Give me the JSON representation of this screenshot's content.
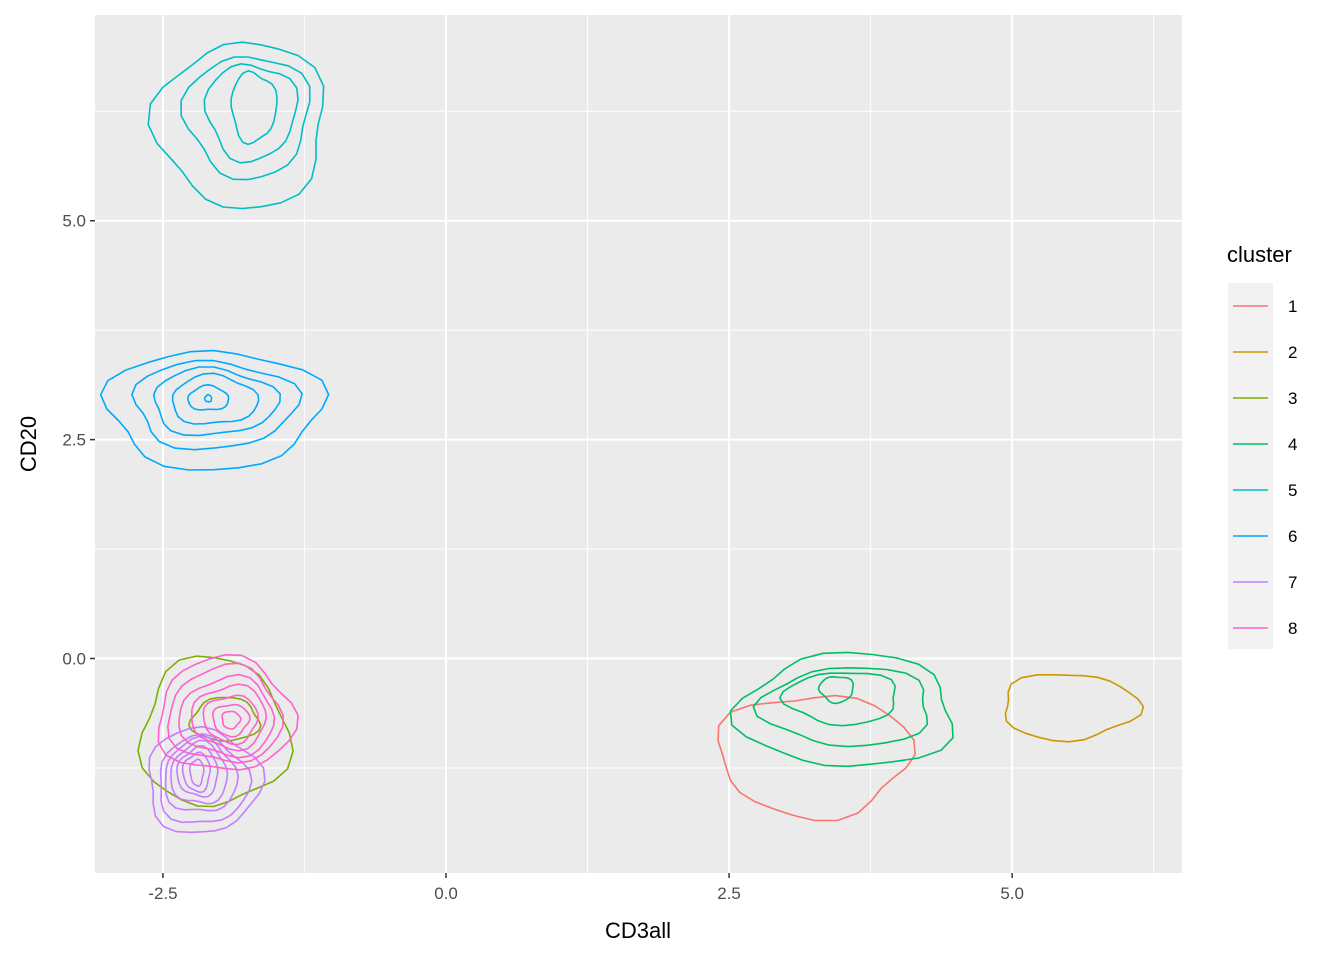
{
  "chart_data": {
    "type": "contour",
    "title": "",
    "xlabel": "CD3all",
    "ylabel": "CD20",
    "xlim": [
      -3.1,
      6.5
    ],
    "ylim": [
      -2.45,
      7.35
    ],
    "x_ticks": [
      -2.5,
      0.0,
      2.5,
      5.0
    ],
    "x_tick_labels": [
      "-2.5",
      "0.0",
      "2.5",
      "5.0"
    ],
    "y_ticks": [
      0.0,
      2.5,
      5.0
    ],
    "y_tick_labels": [
      "0.0",
      "2.5",
      "5.0"
    ],
    "grid": true,
    "legend": {
      "title": "cluster",
      "placement": "right",
      "entries": [
        "1",
        "2",
        "3",
        "4",
        "5",
        "6",
        "7",
        "8"
      ]
    },
    "colors": {
      "1": "#F8766D",
      "2": "#CD9600",
      "3": "#7CAE00",
      "4": "#00BE67",
      "5": "#00BFC4",
      "6": "#00A9FF",
      "7": "#C77CFF",
      "8": "#FF61CC"
    },
    "panel_background": "#EBEBEB",
    "series": [
      {
        "name": "1",
        "center": [
          3.3,
          -0.9
        ],
        "rings": [
          {
            "rx": 0.85,
            "ry": 0.7,
            "dx": -0.05,
            "dy": -0.2
          }
        ]
      },
      {
        "name": "2",
        "center": [
          5.5,
          -0.55
        ],
        "rings": [
          {
            "rx": 0.6,
            "ry": 0.38,
            "dx": 0.0,
            "dy": 0.0
          }
        ]
      },
      {
        "name": "3",
        "center": [
          -2.05,
          -0.85
        ],
        "rings": [
          {
            "rx": 0.65,
            "ry": 0.85,
            "dx": 0.0,
            "dy": 0.0
          },
          {
            "rx": 0.3,
            "ry": 0.25,
            "dx": 0.1,
            "dy": 0.15
          }
        ]
      },
      {
        "name": "4",
        "center": [
          3.55,
          -0.6
        ],
        "rings": [
          {
            "rx": 0.95,
            "ry": 0.65,
            "dx": 0.0,
            "dy": 0.0
          },
          {
            "rx": 0.75,
            "ry": 0.45,
            "dx": 0.0,
            "dy": 0.05
          },
          {
            "rx": 0.5,
            "ry": 0.3,
            "dx": -0.05,
            "dy": 0.15
          },
          {
            "rx": 0.15,
            "ry": 0.15,
            "dx": -0.1,
            "dy": 0.25
          }
        ]
      },
      {
        "name": "5",
        "center": [
          -1.8,
          6.1
        ],
        "rings": [
          {
            "rx": 0.75,
            "ry": 0.95,
            "dx": 0.0,
            "dy": 0.0
          },
          {
            "rx": 0.55,
            "ry": 0.7,
            "dx": 0.05,
            "dy": 0.1
          },
          {
            "rx": 0.4,
            "ry": 0.55,
            "dx": 0.08,
            "dy": 0.15
          },
          {
            "rx": 0.2,
            "ry": 0.4,
            "dx": 0.1,
            "dy": 0.2
          }
        ]
      },
      {
        "name": "6",
        "center": [
          -2.05,
          2.85
        ],
        "rings": [
          {
            "rx": 0.95,
            "ry": 0.68,
            "dx": 0.0,
            "dy": 0.0
          },
          {
            "rx": 0.72,
            "ry": 0.5,
            "dx": 0.0,
            "dy": 0.05
          },
          {
            "rx": 0.55,
            "ry": 0.38,
            "dx": 0.0,
            "dy": 0.08
          },
          {
            "rx": 0.38,
            "ry": 0.28,
            "dx": 0.0,
            "dy": 0.1
          },
          {
            "rx": 0.18,
            "ry": 0.14,
            "dx": -0.05,
            "dy": 0.12
          },
          {
            "rx": 0.03,
            "ry": 0.04,
            "dx": -0.05,
            "dy": 0.12
          }
        ]
      },
      {
        "name": "7",
        "center": [
          -2.15,
          -1.4
        ],
        "rings": [
          {
            "rx": 0.5,
            "ry": 0.6,
            "dx": 0.0,
            "dy": 0.0
          },
          {
            "rx": 0.4,
            "ry": 0.5,
            "dx": 0.0,
            "dy": 0.0
          },
          {
            "rx": 0.32,
            "ry": 0.42,
            "dx": -0.02,
            "dy": 0.05
          },
          {
            "rx": 0.25,
            "ry": 0.35,
            "dx": -0.03,
            "dy": 0.08
          },
          {
            "rx": 0.18,
            "ry": 0.28,
            "dx": -0.04,
            "dy": 0.1
          },
          {
            "rx": 0.12,
            "ry": 0.22,
            "dx": -0.05,
            "dy": 0.1
          },
          {
            "rx": 0.06,
            "ry": 0.15,
            "dx": -0.05,
            "dy": 0.1
          }
        ]
      },
      {
        "name": "8",
        "center": [
          -1.95,
          -0.65
        ],
        "rings": [
          {
            "rx": 0.6,
            "ry": 0.65,
            "dx": 0.0,
            "dy": 0.0
          },
          {
            "rx": 0.5,
            "ry": 0.55,
            "dx": 0.0,
            "dy": 0.0
          },
          {
            "rx": 0.42,
            "ry": 0.45,
            "dx": 0.02,
            "dy": -0.02
          },
          {
            "rx": 0.33,
            "ry": 0.36,
            "dx": 0.04,
            "dy": -0.02
          },
          {
            "rx": 0.24,
            "ry": 0.27,
            "dx": 0.05,
            "dy": -0.04
          },
          {
            "rx": 0.16,
            "ry": 0.18,
            "dx": 0.05,
            "dy": -0.05
          },
          {
            "rx": 0.08,
            "ry": 0.1,
            "dx": 0.05,
            "dy": -0.05
          }
        ]
      }
    ]
  }
}
